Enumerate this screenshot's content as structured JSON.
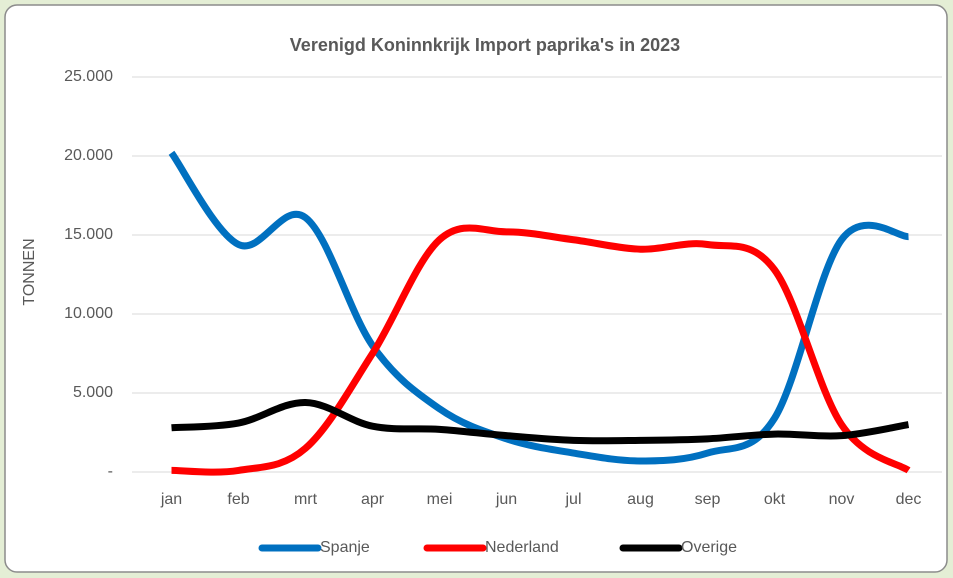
{
  "chart_data": {
    "type": "line",
    "title": "Verenigd Koninnkrijk Import paprika's in 2023",
    "y_label": "TONNEN",
    "categories": [
      "jan",
      "feb",
      "mrt",
      "apr",
      "mei",
      "jun",
      "jul",
      "aug",
      "sep",
      "okt",
      "nov",
      "dec"
    ],
    "series": [
      {
        "name": "Spanje",
        "color": "#0070c0",
        "values": [
          20200,
          14400,
          16100,
          8000,
          4000,
          2100,
          1200,
          700,
          1200,
          3400,
          14700,
          14900
        ]
      },
      {
        "name": "Nederland",
        "color": "#ff0000",
        "values": [
          100,
          100,
          1500,
          7500,
          14700,
          15200,
          14700,
          14100,
          14400,
          12800,
          3000,
          100
        ]
      },
      {
        "name": "Overige",
        "color": "#000000",
        "values": [
          2800,
          3100,
          4400,
          2900,
          2700,
          2300,
          2000,
          2000,
          2100,
          2400,
          2300,
          3000
        ]
      }
    ],
    "ylim": [
      0,
      25000
    ],
    "yticks": [
      {
        "value": 0,
        "label": "-"
      },
      {
        "value": 5000,
        "label": "5.000"
      },
      {
        "value": 10000,
        "label": "10.000"
      },
      {
        "value": 15000,
        "label": "15.000"
      },
      {
        "value": 20000,
        "label": "20.000"
      },
      {
        "value": 25000,
        "label": "25.000"
      }
    ],
    "grid": true,
    "legend": "bottom"
  }
}
